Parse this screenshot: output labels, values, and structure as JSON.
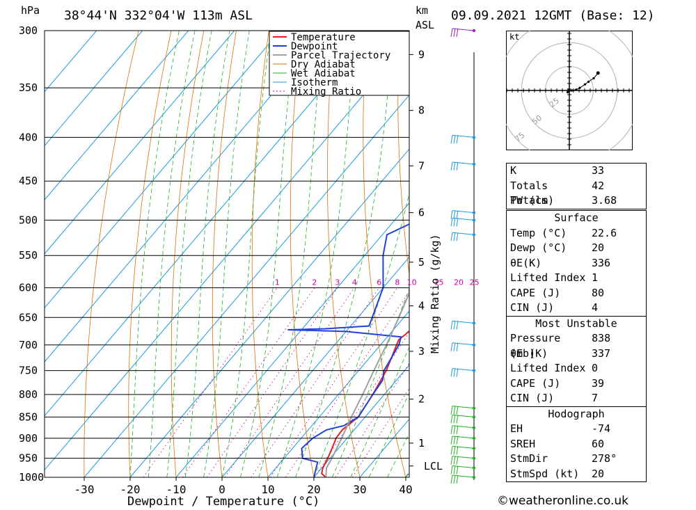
{
  "header": {
    "location": "38°44'N 332°04'W 113m ASL",
    "datetime": "09.09.2021 12GMT (Base: 12)",
    "pressure_unit": "hPa",
    "height_unit_km": "km",
    "height_unit_asl": "ASL"
  },
  "chart_data": {
    "type": "line",
    "title": "38°44'N 332°04'W 113m ASL",
    "xlabel": "Dewpoint / Temperature (°C)",
    "ylabel": "hPa",
    "right_axis_label": "Mixing Ratio (g/kg)",
    "x_ticks": [
      -30,
      -20,
      -10,
      0,
      10,
      20,
      30,
      40
    ],
    "pressure_levels": [
      300,
      350,
      400,
      450,
      500,
      550,
      600,
      650,
      700,
      750,
      800,
      850,
      900,
      950,
      1000
    ],
    "km_ticks": [
      {
        "label": "1",
        "p": 912
      },
      {
        "label": "2",
        "p": 810
      },
      {
        "label": "3",
        "p": 712
      },
      {
        "label": "4",
        "p": 630
      },
      {
        "label": "5",
        "p": 560
      },
      {
        "label": "6",
        "p": 490
      },
      {
        "label": "7",
        "p": 432
      },
      {
        "label": "8",
        "p": 372
      },
      {
        "label": "9",
        "p": 320
      },
      {
        "label": "LCL",
        "p": 970
      }
    ],
    "mixing_ratio_labels": [
      "1",
      "2",
      "3",
      "4",
      "6",
      "8",
      "10",
      "15",
      "20",
      "25"
    ],
    "mixing_ratio_values": [
      1,
      2,
      3,
      4,
      6,
      8,
      10,
      15,
      20,
      25
    ],
    "legend": [
      "Temperature",
      "Dewpoint",
      "Parcel Trajectory",
      "Dry Adiabat",
      "Wet Adiabat",
      "Isotherm",
      "Mixing Ratio"
    ],
    "legend_position": "top-right",
    "colors": {
      "temperature": "#e02020",
      "dewpoint": "#2040e0",
      "parcel": "#a0a0a0",
      "dry_adiabat": "#e07000",
      "wet_adiabat": "#20b020",
      "isotherm": "#1a9ae0",
      "mixing_ratio": "#cc0099"
    },
    "series": [
      {
        "name": "Temperature",
        "points": [
          [
            1000,
            22.6
          ],
          [
            990,
            21
          ],
          [
            975,
            20.2
          ],
          [
            950,
            19.5
          ],
          [
            925,
            18.6
          ],
          [
            900,
            17.6
          ],
          [
            880,
            17.4
          ],
          [
            850,
            18.5
          ],
          [
            800,
            17.5
          ],
          [
            750,
            16
          ],
          [
            700,
            13.5
          ],
          [
            690,
            13
          ],
          [
            680,
            13.5
          ],
          [
            670,
            13.8
          ],
          [
            650,
            12
          ],
          [
            600,
            9
          ],
          [
            550,
            6
          ],
          [
            500,
            1
          ],
          [
            450,
            -5
          ],
          [
            400,
            -11
          ],
          [
            350,
            -19
          ],
          [
            320,
            -24
          ],
          [
            300,
            -29
          ]
        ]
      },
      {
        "name": "Dewpoint",
        "points": [
          [
            1000,
            20
          ],
          [
            990,
            19.5
          ],
          [
            960,
            18
          ],
          [
            950,
            14
          ],
          [
            925,
            12
          ],
          [
            900,
            12.5
          ],
          [
            880,
            14
          ],
          [
            870,
            17
          ],
          [
            850,
            18.5
          ],
          [
            800,
            17.5
          ],
          [
            770,
            17
          ],
          [
            750,
            15.5
          ],
          [
            700,
            14
          ],
          [
            685,
            13
          ],
          [
            675,
            0
          ],
          [
            672,
            -13
          ],
          [
            670,
            -5
          ],
          [
            665,
            4
          ],
          [
            600,
            0
          ],
          [
            550,
            -6
          ],
          [
            520,
            -9
          ],
          [
            500,
            -5
          ],
          [
            480,
            -9
          ],
          [
            450,
            -6
          ],
          [
            400,
            -16
          ],
          [
            390,
            -10
          ],
          [
            370,
            -6
          ],
          [
            360,
            -13
          ],
          [
            350,
            -14
          ],
          [
            320,
            -16
          ],
          [
            315,
            -17
          ],
          [
            300,
            -10
          ]
        ]
      },
      {
        "name": "Parcel Trajectory",
        "points": [
          [
            1000,
            22.6
          ],
          [
            975,
            21
          ],
          [
            950,
            20.4
          ],
          [
            900,
            18.8
          ],
          [
            850,
            17
          ],
          [
            800,
            15.3
          ],
          [
            750,
            13.3
          ],
          [
            700,
            11.3
          ],
          [
            650,
            8.9
          ],
          [
            600,
            6.2
          ],
          [
            550,
            3
          ],
          [
            500,
            -0.8
          ],
          [
            450,
            -5.4
          ],
          [
            400,
            -11
          ],
          [
            350,
            -18
          ],
          [
            300,
            -26.5
          ]
        ]
      }
    ],
    "wind_barbs_p": [
      300,
      400,
      430,
      490,
      500,
      520,
      660,
      700,
      750,
      830,
      850,
      875,
      900,
      925,
      950,
      975,
      1000
    ]
  },
  "hodograph": {
    "unit": "kt",
    "ring_labels": [
      "25",
      "50",
      "75"
    ],
    "trace": [
      [
        0,
        0
      ],
      [
        -2,
        -2
      ],
      [
        3,
        0
      ],
      [
        8,
        1
      ],
      [
        12,
        3
      ],
      [
        18,
        7
      ],
      [
        22,
        10
      ],
      [
        28,
        14
      ],
      [
        33,
        20
      ]
    ]
  },
  "indices": {
    "general": [
      {
        "label": "K",
        "value": "33"
      },
      {
        "label": "Totals Totals",
        "value": "42"
      },
      {
        "label": "PW (cm)",
        "value": "3.68"
      }
    ],
    "surface_title": "Surface",
    "surface": [
      {
        "label": "Temp (°C)",
        "value": "22.6"
      },
      {
        "label": "Dewp (°C)",
        "value": "20"
      },
      {
        "label": "θE(K)",
        "value": "336"
      },
      {
        "label": "Lifted Index",
        "value": "1"
      },
      {
        "label": "CAPE (J)",
        "value": "80"
      },
      {
        "label": "CIN (J)",
        "value": "4"
      }
    ],
    "most_unstable_title": "Most Unstable",
    "most_unstable": [
      {
        "label": "Pressure (mb)",
        "value": "838"
      },
      {
        "label": "θE (K)",
        "value": "337"
      },
      {
        "label": "Lifted Index",
        "value": "0"
      },
      {
        "label": "CAPE (J)",
        "value": "39"
      },
      {
        "label": "CIN (J)",
        "value": "7"
      }
    ],
    "hodograph_title": "Hodograph",
    "hodograph_vals": [
      {
        "label": "EH",
        "value": "-74"
      },
      {
        "label": "SREH",
        "value": "60"
      },
      {
        "label": "StmDir",
        "value": "278°"
      },
      {
        "label": "StmSpd (kt)",
        "value": "20"
      }
    ]
  },
  "footer": "©weatheronline.co.uk"
}
